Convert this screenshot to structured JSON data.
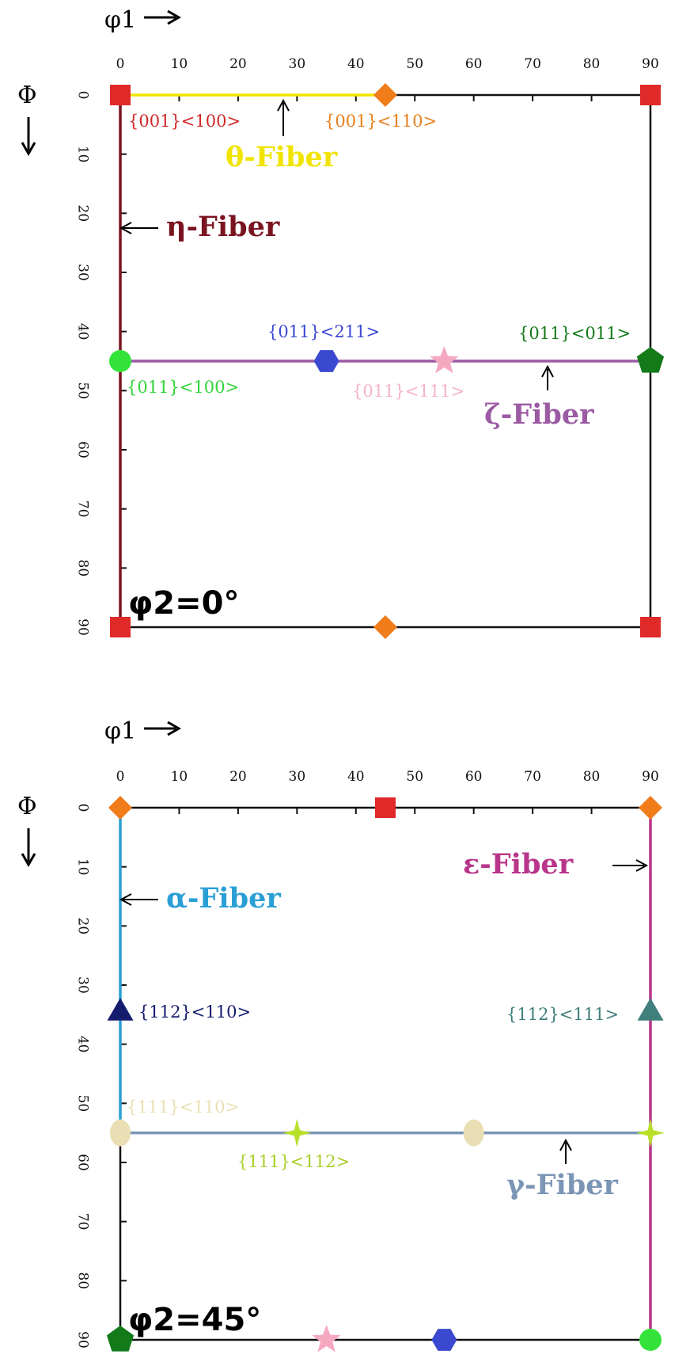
{
  "panels": [
    {
      "id": "phi2-0",
      "phi1_axis_label": "φ1",
      "Phi_axis_label": "Φ",
      "x_ticks": [
        "0",
        "10",
        "20",
        "30",
        "40",
        "50",
        "60",
        "70",
        "80",
        "90"
      ],
      "y_ticks": [
        "0",
        "10",
        "20",
        "30",
        "40",
        "50",
        "60",
        "70",
        "80",
        "90"
      ],
      "section_label": "φ2=0°",
      "fibers": [
        {
          "name": "θ-Fiber",
          "color": "#f0e400",
          "from": [
            0,
            0
          ],
          "to": [
            45,
            0
          ]
        },
        {
          "name": "η-Fiber",
          "color": "#7a1420",
          "from": [
            0,
            0
          ],
          "to": [
            0,
            90
          ]
        },
        {
          "name": "ζ-Fiber",
          "color": "#9b5aa3",
          "from": [
            0,
            45
          ],
          "to": [
            90,
            45
          ]
        }
      ],
      "components": [
        {
          "name": "{001}<100>",
          "shape": "square",
          "color": "#e02929",
          "phi1": 0,
          "Phi": 0
        },
        {
          "name": "{001}<110>",
          "shape": "diamond",
          "color": "#f07c1a",
          "phi1": 45,
          "Phi": 0
        },
        {
          "name": "",
          "shape": "square",
          "color": "#e02929",
          "phi1": 90,
          "Phi": 0
        },
        {
          "name": "{011}<100>",
          "shape": "circle",
          "color": "#33e33a",
          "phi1": 0,
          "Phi": 45
        },
        {
          "name": "{011}<211>",
          "shape": "hexagon",
          "color": "#3b49d1",
          "phi1": 35,
          "Phi": 45
        },
        {
          "name": "{011}<111>",
          "shape": "star",
          "color": "#f5a9c0",
          "phi1": 55,
          "Phi": 45
        },
        {
          "name": "{011}<011>",
          "shape": "pentagon",
          "color": "#137a1a",
          "phi1": 90,
          "Phi": 45
        },
        {
          "name": "",
          "shape": "square",
          "color": "#e02929",
          "phi1": 0,
          "Phi": 90
        },
        {
          "name": "",
          "shape": "diamond",
          "color": "#f07c1a",
          "phi1": 45,
          "Phi": 90
        },
        {
          "name": "",
          "shape": "square",
          "color": "#e02929",
          "phi1": 90,
          "Phi": 90
        }
      ]
    },
    {
      "id": "phi2-45",
      "phi1_axis_label": "φ1",
      "Phi_axis_label": "Φ",
      "x_ticks": [
        "0",
        "10",
        "20",
        "30",
        "40",
        "50",
        "60",
        "70",
        "80",
        "90"
      ],
      "y_ticks": [
        "0",
        "10",
        "20",
        "30",
        "40",
        "50",
        "60",
        "70",
        "80",
        "90"
      ],
      "section_label": "φ2=45°",
      "fibers": [
        {
          "name": "α-Fiber",
          "color": "#2a9fd6",
          "from": [
            0,
            0
          ],
          "to": [
            0,
            55
          ]
        },
        {
          "name": "ε-Fiber",
          "color": "#b8358a",
          "from": [
            90,
            0
          ],
          "to": [
            90,
            90
          ]
        },
        {
          "name": "γ-Fiber",
          "color": "#7b95b5",
          "from": [
            0,
            55
          ],
          "to": [
            90,
            55
          ]
        }
      ],
      "components": [
        {
          "name": "",
          "shape": "diamond",
          "color": "#f07c1a",
          "phi1": 0,
          "Phi": 0
        },
        {
          "name": "",
          "shape": "square",
          "color": "#e02929",
          "phi1": 45,
          "Phi": 0
        },
        {
          "name": "",
          "shape": "diamond",
          "color": "#f07c1a",
          "phi1": 90,
          "Phi": 0
        },
        {
          "name": "{112}<110>",
          "shape": "triangle",
          "color": "#141c6e",
          "phi1": 0,
          "Phi": 35
        },
        {
          "name": "{112}<111>",
          "shape": "triangle",
          "color": "#3f7f7c",
          "phi1": 90,
          "Phi": 35
        },
        {
          "name": "{111}<110>",
          "shape": "ellipse",
          "color": "#eadfb4",
          "phi1": 0,
          "Phi": 55
        },
        {
          "name": "{111}<112>",
          "shape": "star4",
          "color": "#b8e02a",
          "phi1": 30,
          "Phi": 55
        },
        {
          "name": "",
          "shape": "ellipse",
          "color": "#eadfb4",
          "phi1": 60,
          "Phi": 55
        },
        {
          "name": "",
          "shape": "star4",
          "color": "#b8e02a",
          "phi1": 90,
          "Phi": 55
        },
        {
          "name": "",
          "shape": "pentagon",
          "color": "#137a1a",
          "phi1": 0,
          "Phi": 90
        },
        {
          "name": "",
          "shape": "star",
          "color": "#f5a9c0",
          "phi1": 35,
          "Phi": 90
        },
        {
          "name": "",
          "shape": "hexagon",
          "color": "#3b49d1",
          "phi1": 55,
          "Phi": 90
        },
        {
          "name": "",
          "shape": "circle",
          "color": "#33e33a",
          "phi1": 90,
          "Phi": 90
        }
      ]
    }
  ]
}
